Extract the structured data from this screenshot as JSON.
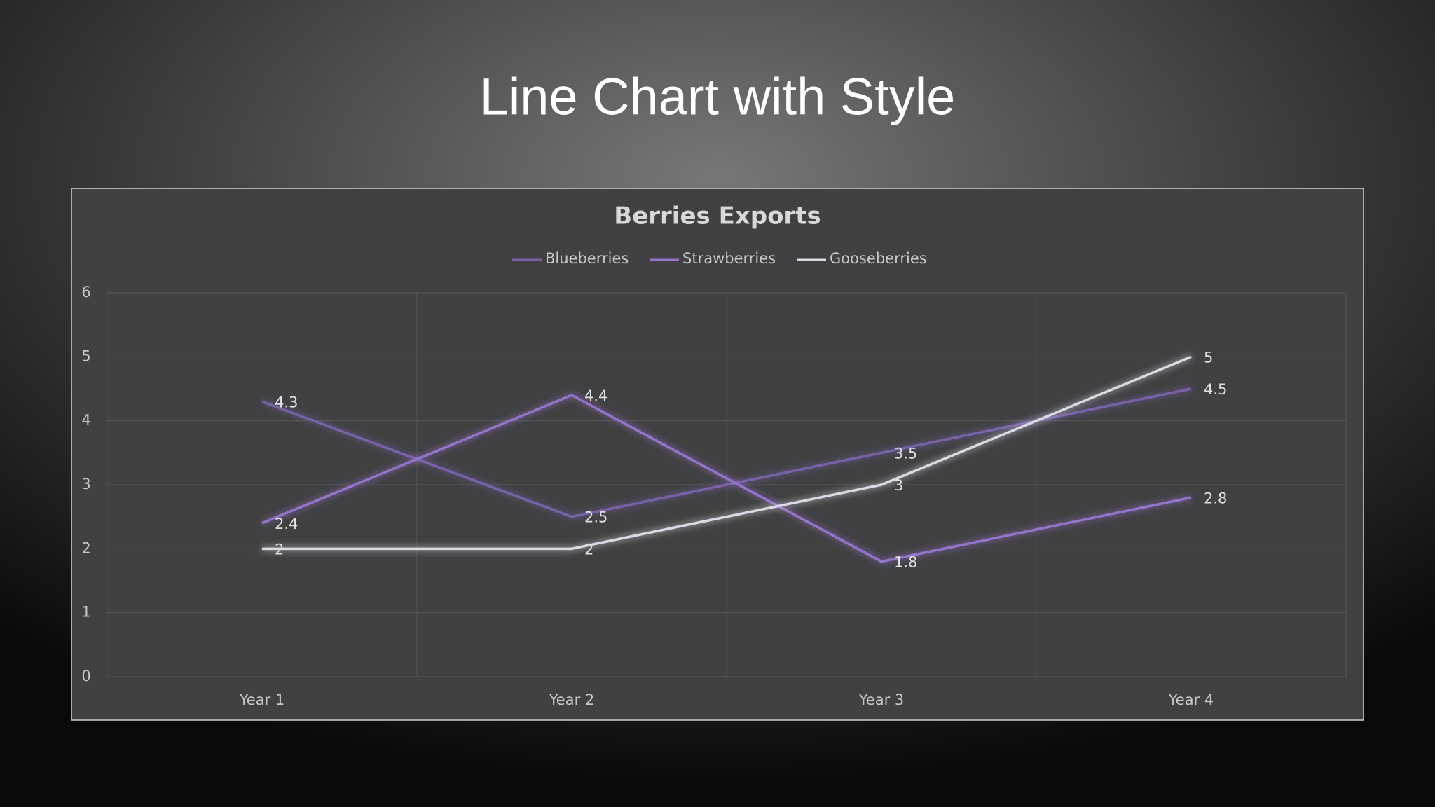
{
  "title": "Line Chart with Style",
  "chart_data": {
    "type": "line",
    "title": "Berries Exports",
    "categories": [
      "Year 1",
      "Year 2",
      "Year 3",
      "Year 4"
    ],
    "series": [
      {
        "name": "Blueberries",
        "color": "#7a62a8",
        "values": [
          4.3,
          2.5,
          3.5,
          4.5
        ]
      },
      {
        "name": "Strawberries",
        "color": "#9574cc",
        "values": [
          2.4,
          4.4,
          1.8,
          2.8
        ]
      },
      {
        "name": "Gooseberries",
        "color": "#dcd8e4",
        "values": [
          2,
          2,
          3,
          5
        ]
      }
    ],
    "ylim": [
      0,
      6
    ],
    "yticks": [
      0,
      1,
      2,
      3,
      4,
      5,
      6
    ],
    "grid": true,
    "legend": "top",
    "data_labels": true
  }
}
